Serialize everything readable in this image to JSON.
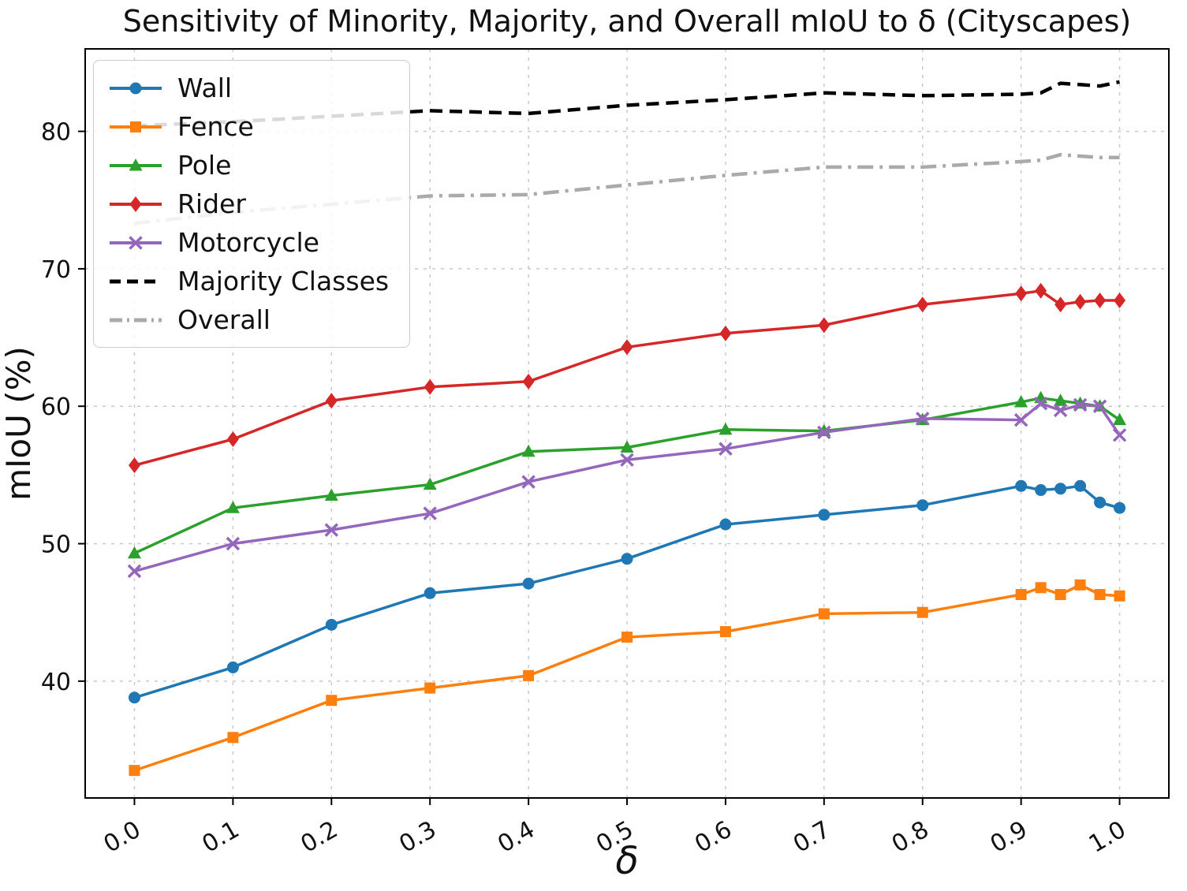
{
  "title": "Sensitivity of Minority, Majority, and Overall mIoU to δ (Cityscapes)",
  "chart_data": {
    "type": "line",
    "title": "Sensitivity of Minority, Majority, and Overall mIoU to δ (Cityscapes)",
    "xlabel": "δ",
    "ylabel": "mIoU (%)",
    "xlim": [
      -0.05,
      1.05
    ],
    "ylim": [
      31.5,
      86.0
    ],
    "xticks": [
      0.0,
      0.1,
      0.2,
      0.3,
      0.4,
      0.5,
      0.6,
      0.7,
      0.8,
      0.9,
      1.0
    ],
    "yticks": [
      40,
      50,
      60,
      70,
      80
    ],
    "grid": true,
    "legend_position": "upper left",
    "x": [
      0.0,
      0.1,
      0.2,
      0.3,
      0.4,
      0.5,
      0.6,
      0.7,
      0.8,
      0.9,
      0.92,
      0.94,
      0.96,
      0.98,
      1.0
    ],
    "series": [
      {
        "name": "Wall",
        "color": "#1f77b4",
        "marker": "circle",
        "linestyle": "solid",
        "values": [
          38.8,
          41.0,
          44.1,
          46.4,
          47.1,
          48.9,
          51.4,
          52.1,
          52.8,
          54.2,
          53.9,
          54.0,
          54.2,
          53.0,
          52.6
        ]
      },
      {
        "name": "Fence",
        "color": "#ff7f0e",
        "marker": "square",
        "linestyle": "solid",
        "values": [
          33.5,
          35.9,
          38.6,
          39.5,
          40.4,
          43.2,
          43.6,
          44.9,
          45.0,
          46.3,
          46.8,
          46.3,
          47.0,
          46.3,
          46.2
        ]
      },
      {
        "name": "Pole",
        "color": "#2ca02c",
        "marker": "triangle",
        "linestyle": "solid",
        "values": [
          49.3,
          52.6,
          53.5,
          54.3,
          56.7,
          57.0,
          58.3,
          58.2,
          59.0,
          60.3,
          60.6,
          60.4,
          60.2,
          60.0,
          59.0
        ]
      },
      {
        "name": "Rider",
        "color": "#d62728",
        "marker": "diamond",
        "linestyle": "solid",
        "values": [
          55.7,
          57.6,
          60.4,
          61.4,
          61.8,
          64.3,
          65.3,
          65.9,
          67.4,
          68.2,
          68.4,
          67.4,
          67.6,
          67.7,
          67.7
        ]
      },
      {
        "name": "Motorcycle",
        "color": "#9467bd",
        "marker": "x",
        "linestyle": "solid",
        "values": [
          48.0,
          50.0,
          51.0,
          52.2,
          54.5,
          56.1,
          56.9,
          58.1,
          59.1,
          59.0,
          60.2,
          59.7,
          60.1,
          60.0,
          57.9
        ]
      },
      {
        "name": "Majority Classes",
        "color": "#000000",
        "marker": "none",
        "linestyle": "dashed",
        "values": [
          80.4,
          80.7,
          81.1,
          81.5,
          81.3,
          81.9,
          82.3,
          82.8,
          82.6,
          82.7,
          82.8,
          83.5,
          83.4,
          83.3,
          83.6
        ]
      },
      {
        "name": "Overall",
        "color": "#aaaaaa",
        "marker": "none",
        "linestyle": "dashdot",
        "values": [
          73.3,
          74.1,
          74.7,
          75.3,
          75.4,
          76.1,
          76.8,
          77.4,
          77.4,
          77.8,
          77.9,
          78.3,
          78.2,
          78.1,
          78.1
        ]
      }
    ]
  }
}
